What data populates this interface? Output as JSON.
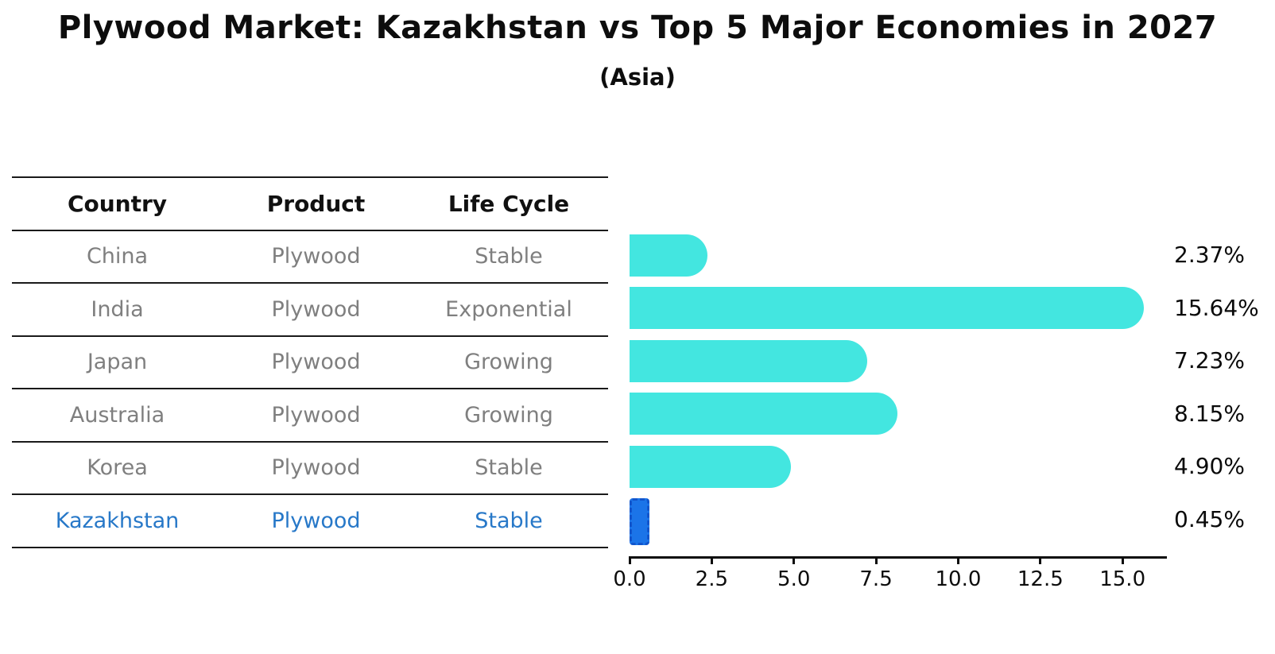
{
  "header": {
    "title": "Plywood Market: Kazakhstan vs Top 5 Major Economies in 2027",
    "subtitle": "(Asia)"
  },
  "table": {
    "columns": [
      "Country",
      "Product",
      "Life Cycle"
    ],
    "rows": [
      {
        "country": "China",
        "product": "Plywood",
        "life_cycle": "Stable",
        "highlight": false
      },
      {
        "country": "India",
        "product": "Plywood",
        "life_cycle": "Exponential",
        "highlight": false
      },
      {
        "country": "Japan",
        "product": "Plywood",
        "life_cycle": "Growing",
        "highlight": false
      },
      {
        "country": "Australia",
        "product": "Plywood",
        "life_cycle": "Growing",
        "highlight": false
      },
      {
        "country": "Korea",
        "product": "Plywood",
        "life_cycle": "Stable",
        "highlight": false
      },
      {
        "country": "Kazakhstan",
        "product": "Plywood",
        "life_cycle": "Stable",
        "highlight": true
      }
    ]
  },
  "chart_data": {
    "type": "bar",
    "orientation": "horizontal",
    "title": "Plywood Market: Kazakhstan vs Top 5 Major Economies in 2027",
    "subtitle": "(Asia)",
    "categories": [
      "China",
      "India",
      "Japan",
      "Australia",
      "Korea",
      "Kazakhstan"
    ],
    "values": [
      2.37,
      15.64,
      7.23,
      8.15,
      4.9,
      0.45
    ],
    "value_labels": [
      "2.37%",
      "15.64%",
      "7.23%",
      "8.15%",
      "4.90%",
      "0.45%"
    ],
    "xlabel": "",
    "ylabel": "",
    "xlim": [
      0,
      16.35
    ],
    "xticks": [
      0.0,
      2.5,
      5.0,
      7.5,
      10.0,
      12.5,
      15.0
    ],
    "xtick_labels": [
      "0.0",
      "2.5",
      "5.0",
      "7.5",
      "10.0",
      "12.5",
      "15.0"
    ],
    "grid": false,
    "legend": false,
    "highlight_index": 5
  },
  "colors": {
    "bar_cyan": "#43e6e0",
    "bar_blue": "#1b74e8",
    "bar_blue_border": "#1155cc",
    "row_text": "#7f7f7f",
    "highlight_text": "#2778c8"
  }
}
